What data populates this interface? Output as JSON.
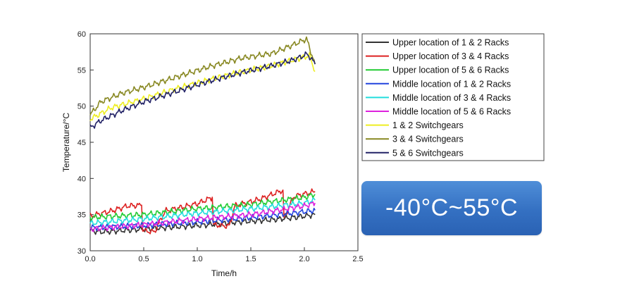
{
  "chart_data": {
    "type": "line",
    "xlabel": "Time/h",
    "ylabel": "Temperature/°C",
    "xlim": [
      0,
      2.5
    ],
    "ylim": [
      30,
      60
    ],
    "xticks": [
      "0.0",
      "0.5",
      "1.0",
      "1.5",
      "2.0",
      "2.5"
    ],
    "yticks": [
      "30",
      "35",
      "40",
      "45",
      "50",
      "55",
      "60"
    ],
    "grid": false,
    "legend_position": "right",
    "series": [
      {
        "name": "Upper location of 1 & 2 Racks",
        "color": "#333333",
        "x": [
          0,
          0.1,
          0.3,
          0.5,
          0.8,
          1.1,
          1.4,
          1.7,
          1.9,
          2.1
        ],
        "y": [
          32.8,
          32.6,
          32.8,
          33.0,
          33.3,
          33.6,
          34.0,
          34.3,
          34.6,
          35.0
        ]
      },
      {
        "name": "Upper location of 3 & 4 Racks",
        "color": "#dd2222",
        "x": [
          0,
          0.2,
          0.35,
          0.48,
          0.49,
          0.6,
          0.7,
          1.0,
          1.14,
          1.15,
          1.3,
          1.35,
          1.6,
          1.8,
          1.81,
          1.9,
          2.1
        ],
        "y": [
          34.8,
          35.5,
          36.2,
          36.3,
          32.8,
          32.6,
          35.5,
          36.5,
          37.4,
          33.6,
          33.4,
          36.2,
          37.2,
          38.4,
          34.5,
          37.5,
          38.2
        ]
      },
      {
        "name": "Upper location of 5 & 6 Racks",
        "color": "#22cc33",
        "x": [
          0,
          0.5,
          1.0,
          1.5,
          2.0,
          2.1
        ],
        "y": [
          34.6,
          35.0,
          35.8,
          36.4,
          37.4,
          37.8
        ]
      },
      {
        "name": "Middle location of 1 & 2 Racks",
        "color": "#2244dd",
        "x": [
          0,
          0.5,
          1.0,
          1.5,
          2.0,
          2.1
        ],
        "y": [
          33.2,
          33.5,
          34.0,
          34.6,
          35.4,
          35.6
        ]
      },
      {
        "name": "Middle location of 3 & 4 Racks",
        "color": "#22dddd",
        "x": [
          0,
          0.5,
          1.0,
          1.5,
          2.0,
          2.1
        ],
        "y": [
          33.8,
          34.4,
          35.2,
          35.8,
          36.6,
          37.0
        ]
      },
      {
        "name": "Middle location of 5 & 6 Racks",
        "color": "#dd22dd",
        "x": [
          0,
          0.5,
          1.0,
          1.5,
          2.0,
          2.1
        ],
        "y": [
          33.0,
          33.6,
          34.4,
          35.0,
          36.2,
          36.6
        ]
      },
      {
        "name": "1 & 2 Switchgears",
        "color": "#eeee22",
        "x": [
          0,
          0.2,
          0.5,
          0.8,
          1.1,
          1.4,
          1.7,
          1.9,
          2.05,
          2.1
        ],
        "y": [
          48.2,
          49.8,
          51.0,
          52.4,
          53.6,
          54.7,
          55.6,
          56.4,
          57.0,
          54.8
        ]
      },
      {
        "name": "3 & 4 Switchgears",
        "color": "#888822",
        "x": [
          0,
          0.1,
          0.3,
          0.5,
          0.8,
          1.1,
          1.4,
          1.7,
          1.9,
          2.02,
          2.1
        ],
        "y": [
          48.8,
          50.6,
          51.8,
          52.6,
          54.0,
          55.4,
          56.6,
          57.3,
          58.5,
          59.3,
          55.8
        ]
      },
      {
        "name": "5 & 6 Switchgears",
        "color": "#222266",
        "x": [
          0,
          0.1,
          0.3,
          0.5,
          0.8,
          1.1,
          1.4,
          1.7,
          1.9,
          2.03,
          2.1
        ],
        "y": [
          47.0,
          48.0,
          49.4,
          50.6,
          52.0,
          53.4,
          54.6,
          55.6,
          56.4,
          57.2,
          55.8
        ]
      }
    ]
  },
  "badge": {
    "text": "-40°C~55°C"
  }
}
